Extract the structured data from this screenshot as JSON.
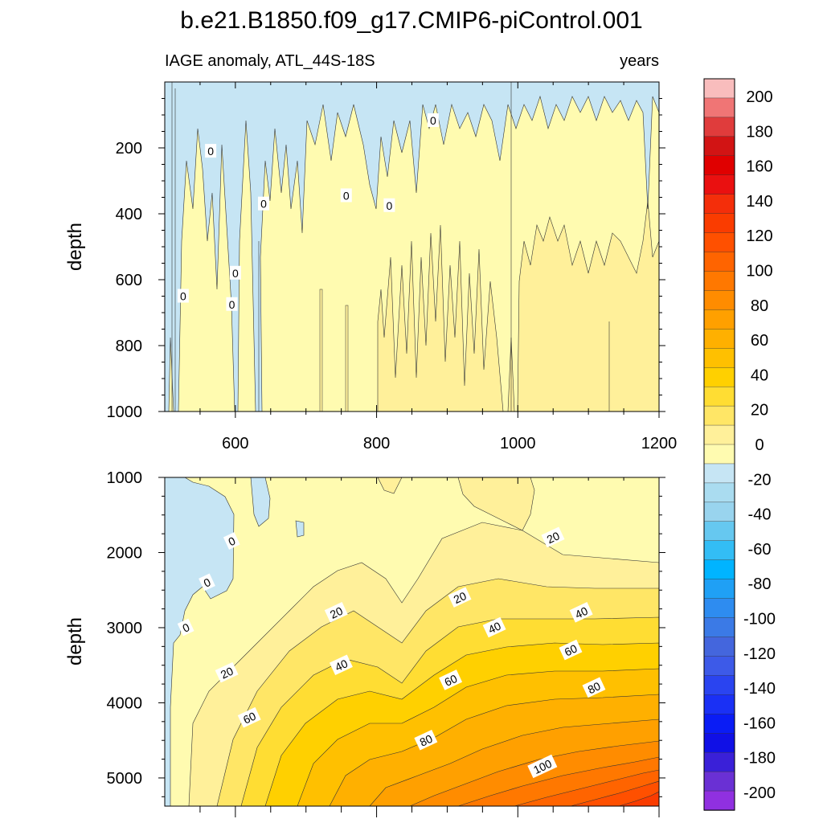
{
  "chart_data": {
    "type": "contour",
    "title": "b.e21.B1850.f09_g17.CMIP6-piControl.001",
    "subtitle_left": "IAGE anomaly, ATL_44S-18S",
    "subtitle_right": "years",
    "xlabel": "",
    "xlim": [
      500,
      1200
    ],
    "x_ticks": [
      "600",
      "800",
      "1000",
      "1200"
    ],
    "panels": [
      {
        "name": "upper",
        "ylabel": "depth",
        "ylim": [
          0,
          1000
        ],
        "y_ticks": [
          "200",
          "400",
          "600",
          "800",
          "1000"
        ],
        "contour_labels": [
          "0",
          "0",
          "0",
          "0",
          "0",
          "0",
          "0",
          "0"
        ],
        "bands": [
          {
            "range": "-20 to 0",
            "region": "near surface, many narrow episodes",
            "value": -5
          },
          {
            "range": "0 to 10",
            "region": "most of panel",
            "value": 5
          },
          {
            "range": "10 to 20",
            "region": "below ~450 m after year ~800",
            "value": 12
          }
        ]
      },
      {
        "name": "lower",
        "ylabel": "depth",
        "ylim": [
          1000,
          5375
        ],
        "y_ticks": [
          "1000",
          "2000",
          "3000",
          "4000",
          "5000"
        ],
        "contour_labels": [
          "0",
          "0",
          "0",
          "20",
          "20",
          "20",
          "20",
          "40",
          "40",
          "40",
          "60",
          "60",
          "60",
          "80",
          "80",
          "100"
        ],
        "bands": [
          {
            "range": "-20 to 0",
            "region": "upper-left, years 500-600, 1000-2700 m",
            "value": -5
          },
          {
            "range": "0 to 20",
            "region": "upper layer / early years",
            "value": 10
          },
          {
            "range": "20 to 100+",
            "region": "deep ocean, increasing with time and depth",
            "value": 110
          }
        ]
      }
    ],
    "colorbar": {
      "labels": [
        "200",
        "180",
        "160",
        "140",
        "120",
        "100",
        "80",
        "60",
        "40",
        "20",
        "0",
        "-20",
        "-40",
        "-60",
        "-80",
        "-100",
        "-120",
        "-140",
        "-160",
        "-180",
        "-200"
      ],
      "levels_min": -210,
      "levels_max": 210,
      "step": 10,
      "colors": [
        "#f9bdbd",
        "#f07575",
        "#e03c3c",
        "#d21414",
        "#e00000",
        "#ea1010",
        "#f42e0a",
        "#fa3c00",
        "#ff5000",
        "#ff6400",
        "#ff7800",
        "#ff8c00",
        "#ffa000",
        "#ffb000",
        "#ffc000",
        "#ffd000",
        "#ffdd33",
        "#ffe666",
        "#fff09a",
        "#fffbb0",
        "#c6e5f4",
        "#aadcf0",
        "#99d4ee",
        "#66c8f0",
        "#33bdf5",
        "#00b4ff",
        "#1fa0f5",
        "#2e8cf0",
        "#3b7ae6",
        "#4466dd",
        "#3d5ae8",
        "#2a44f0",
        "#1a30f5",
        "#0a1cf5",
        "#1010e6",
        "#3a20d8",
        "#6a30d4",
        "#9030e0"
      ]
    }
  }
}
